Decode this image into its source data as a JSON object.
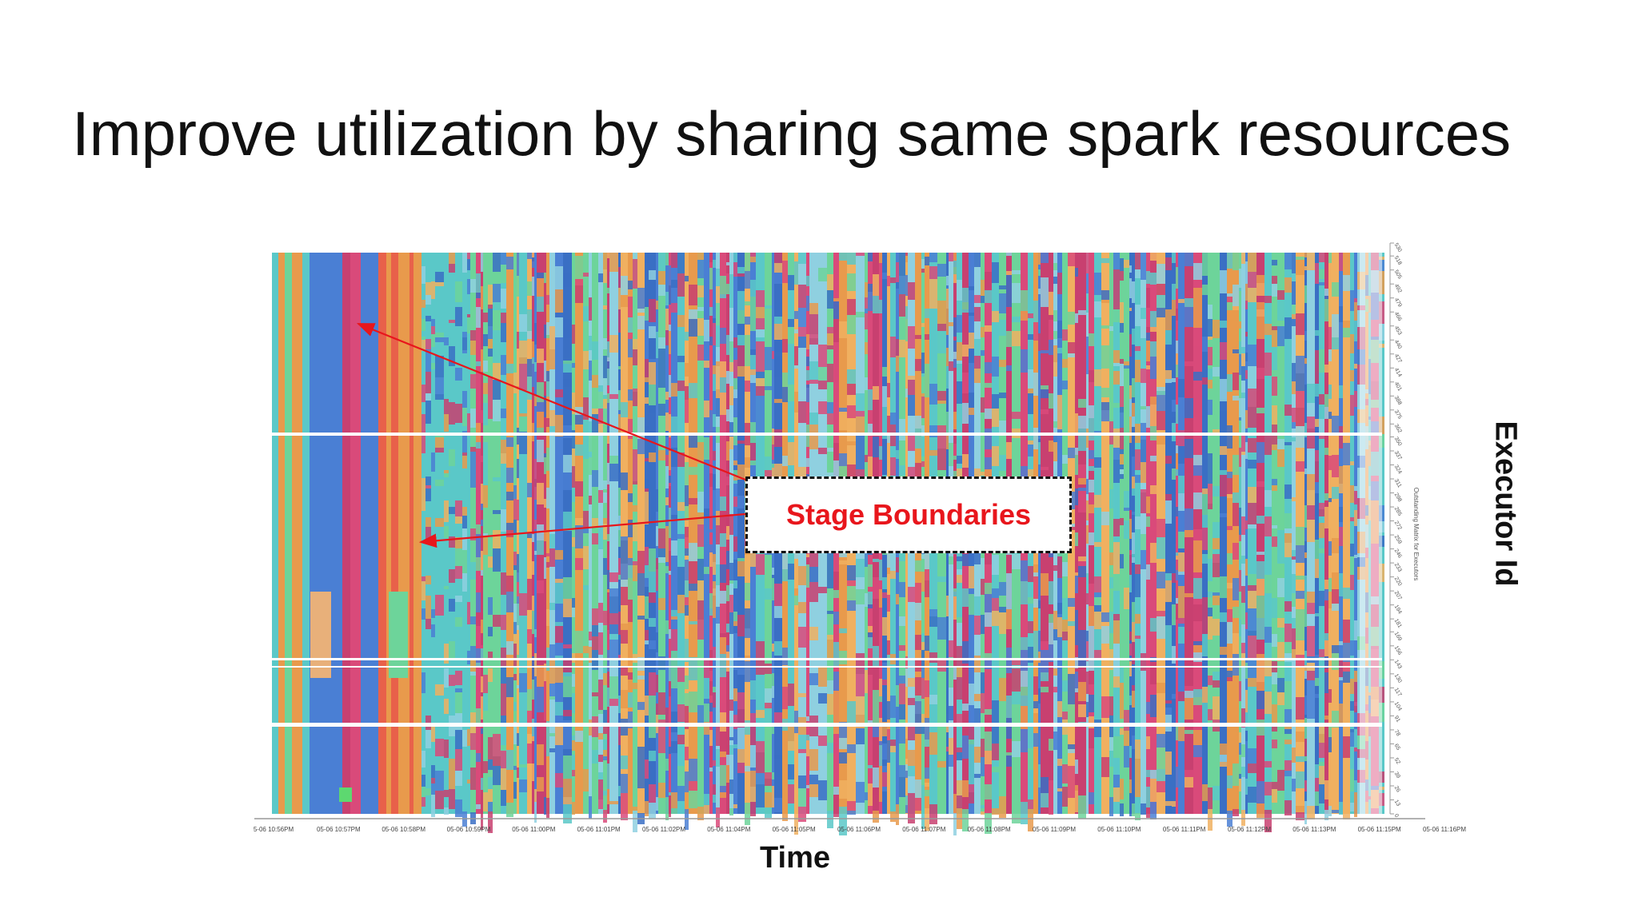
{
  "slide": {
    "title": "Improve utilization by sharing same spark resources"
  },
  "annotation": {
    "label": "Stage Boundaries",
    "color": "#e8161c"
  },
  "chart_data": {
    "type": "heatmap",
    "title": "",
    "xlabel": "Time",
    "ylabel": "Executor Id",
    "secondary_ylabel": "Outstanding Matrix for Executors",
    "x_ticks": [
      "5-06 10:56PM",
      "05-06 10:57PM",
      "05-06 10:58PM",
      "05-06 10:59PM",
      "05-06 11:00PM",
      "05-06 11:01PM",
      "05-06 11:02PM",
      "05-06 11:04PM",
      "05-06 11:05PM",
      "05-06 11:06PM",
      "05-06 11:07PM",
      "05-06 11:08PM",
      "05-06 11:09PM",
      "05-06 11:10PM",
      "05-06 11:11PM",
      "05-06 11:12PM",
      "05-06 11:13PM",
      "05-06 11:15PM",
      "05-06 11:16PM"
    ],
    "y_ticks": [
      0,
      13,
      26,
      39,
      52,
      65,
      78,
      91,
      104,
      117,
      130,
      143,
      156,
      169,
      181,
      194,
      207,
      220,
      233,
      246,
      259,
      272,
      285,
      298,
      311,
      324,
      337,
      350,
      362,
      375,
      388,
      401,
      414,
      427,
      440,
      453,
      466,
      479,
      492,
      505,
      518,
      530
    ],
    "ylim": [
      0,
      530
    ],
    "grid": false,
    "legend": "none",
    "palette": [
      "#4a7fd4",
      "#5ac8c8",
      "#6dd49a",
      "#e89a4c",
      "#d94a7a",
      "#8fd0e0",
      "#3a6fc4",
      "#f0b060",
      "#c84070"
    ]
  }
}
